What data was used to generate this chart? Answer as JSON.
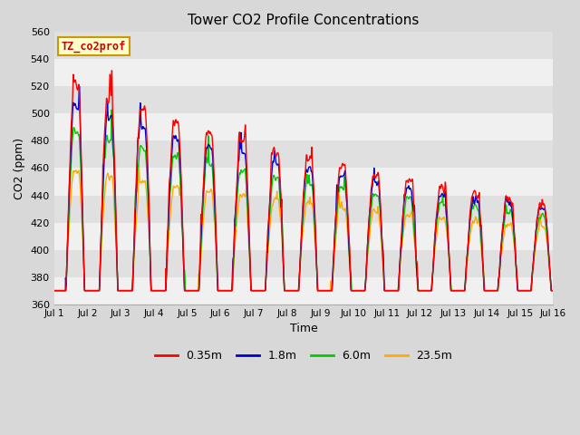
{
  "title": "Tower CO2 Profile Concentrations",
  "xlabel": "Time",
  "ylabel": "CO2 (ppm)",
  "ylim": [
    360,
    560
  ],
  "yticks": [
    360,
    380,
    400,
    420,
    440,
    460,
    480,
    500,
    520,
    540,
    560
  ],
  "xlim": [
    0,
    15
  ],
  "xtick_labels": [
    "Jul 1",
    "Jul 2",
    "Jul 3",
    "Jul 4",
    "Jul 5",
    "Jul 6",
    "Jul 7",
    "Jul 8",
    "Jul 9",
    "Jul 10",
    "Jul 11",
    "Jul 12",
    "Jul 13",
    "Jul 14",
    "Jul 15",
    "Jul 16"
  ],
  "legend_label": "TZ_co2prof",
  "series_labels": [
    "0.35m",
    "1.8m",
    "6.0m",
    "23.5m"
  ],
  "series_colors": [
    "#ff0000",
    "#0000cc",
    "#00cc00",
    "#ffaa00"
  ],
  "series_linewidths": [
    1.0,
    1.0,
    1.0,
    1.0
  ],
  "bg_color": "#d8d8d8",
  "plot_bg_color": "#e8e8e8",
  "band_color_light": "#f0f0f0",
  "band_color_dark": "#e0e0e0",
  "grid_color": "#d0d0d0"
}
